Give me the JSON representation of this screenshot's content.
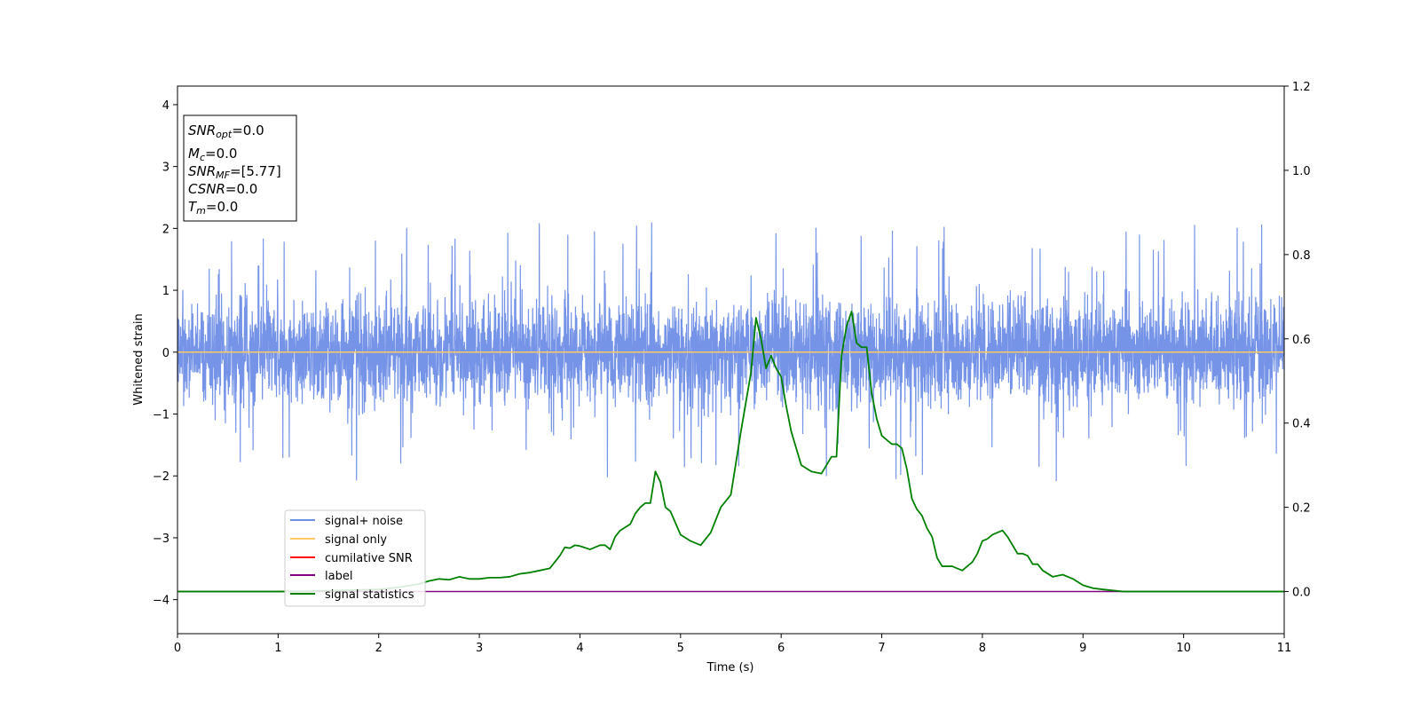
{
  "chart_data": {
    "type": "line",
    "xlabel": "Time (s)",
    "ylabel": "Whitened strain",
    "xlim": [
      0,
      11
    ],
    "ylim": [
      -4.55,
      4.3
    ],
    "y2lim": [
      -0.1,
      1.2
    ],
    "x_ticks": [
      0,
      1,
      2,
      3,
      4,
      5,
      6,
      7,
      8,
      9,
      10,
      11
    ],
    "y_ticks": [
      4,
      3,
      2,
      1,
      0,
      -1,
      -2,
      -3,
      -4
    ],
    "y2_ticks": [
      1.2,
      1.0,
      0.8,
      0.6,
      0.4,
      0.2,
      0.0
    ],
    "grid": false,
    "legend_position": "lower-left",
    "info_box": {
      "snr_opt": {
        "sym": "SNR",
        "sub": "opt",
        "val": "=0.0"
      },
      "mc": {
        "sym": "M",
        "sub": "c",
        "val": "=0.0"
      },
      "snr_mf": {
        "sym": "SNR",
        "sub": "MF",
        "val": "=[5.77]"
      },
      "csnr": {
        "sym": "CSNR",
        "val": "=0.0"
      },
      "tm": {
        "sym": "T",
        "sub": "m",
        "val": "=0.0"
      }
    },
    "series": [
      {
        "name": "signal+ noise",
        "color": "#6f8ee6",
        "axis": "left",
        "noise_envelope": {
          "typical_amplitude": 0.65,
          "peak_amplitude": 2.1
        }
      },
      {
        "name": "signal only",
        "color": "#ffc966",
        "axis": "left",
        "x": [
          0,
          11
        ],
        "y": [
          0,
          0
        ]
      },
      {
        "name": "cumilative SNR",
        "color": "#ff0000",
        "axis": "right",
        "x": [],
        "y": []
      },
      {
        "name": "label",
        "color": "#800080",
        "axis": "right",
        "x": [
          0,
          11
        ],
        "y": [
          0,
          0
        ]
      },
      {
        "name": "signal statistics",
        "color": "#008000",
        "axis": "right",
        "x": [
          0,
          0.5,
          1,
          1.5,
          2,
          2.2,
          2.4,
          2.5,
          2.6,
          2.7,
          2.8,
          2.9,
          3.0,
          3.1,
          3.2,
          3.3,
          3.4,
          3.5,
          3.6,
          3.7,
          3.8,
          3.85,
          3.9,
          3.95,
          4.0,
          4.1,
          4.2,
          4.25,
          4.3,
          4.35,
          4.4,
          4.5,
          4.55,
          4.6,
          4.65,
          4.7,
          4.75,
          4.8,
          4.85,
          4.9,
          5.0,
          5.1,
          5.2,
          5.3,
          5.4,
          5.5,
          5.6,
          5.65,
          5.7,
          5.75,
          5.8,
          5.85,
          5.9,
          5.95,
          6.0,
          6.05,
          6.1,
          6.2,
          6.3,
          6.4,
          6.45,
          6.5,
          6.55,
          6.6,
          6.65,
          6.7,
          6.75,
          6.8,
          6.85,
          6.9,
          6.95,
          7.0,
          7.05,
          7.1,
          7.15,
          7.2,
          7.25,
          7.3,
          7.35,
          7.4,
          7.45,
          7.5,
          7.55,
          7.6,
          7.7,
          7.8,
          7.9,
          7.95,
          8.0,
          8.05,
          8.1,
          8.15,
          8.2,
          8.25,
          8.3,
          8.35,
          8.4,
          8.45,
          8.5,
          8.55,
          8.6,
          8.7,
          8.8,
          8.9,
          9.0,
          9.1,
          9.2,
          9.4,
          10.0,
          11.0
        ],
        "y": [
          0.0,
          0.0,
          0.0,
          0.002,
          0.005,
          0.01,
          0.018,
          0.025,
          0.03,
          0.028,
          0.035,
          0.03,
          0.03,
          0.033,
          0.033,
          0.035,
          0.042,
          0.045,
          0.05,
          0.055,
          0.085,
          0.105,
          0.103,
          0.11,
          0.108,
          0.1,
          0.11,
          0.11,
          0.1,
          0.13,
          0.145,
          0.16,
          0.185,
          0.2,
          0.21,
          0.21,
          0.285,
          0.26,
          0.2,
          0.19,
          0.135,
          0.12,
          0.11,
          0.14,
          0.2,
          0.23,
          0.38,
          0.45,
          0.52,
          0.65,
          0.6,
          0.53,
          0.56,
          0.53,
          0.51,
          0.44,
          0.38,
          0.3,
          0.285,
          0.28,
          0.3,
          0.32,
          0.32,
          0.56,
          0.63,
          0.665,
          0.59,
          0.58,
          0.58,
          0.47,
          0.41,
          0.37,
          0.36,
          0.35,
          0.35,
          0.34,
          0.29,
          0.22,
          0.195,
          0.18,
          0.15,
          0.13,
          0.08,
          0.06,
          0.06,
          0.05,
          0.07,
          0.09,
          0.12,
          0.125,
          0.135,
          0.14,
          0.145,
          0.13,
          0.11,
          0.09,
          0.09,
          0.085,
          0.065,
          0.065,
          0.05,
          0.035,
          0.04,
          0.03,
          0.015,
          0.008,
          0.005,
          0.0,
          0.0,
          0.0
        ]
      }
    ]
  }
}
